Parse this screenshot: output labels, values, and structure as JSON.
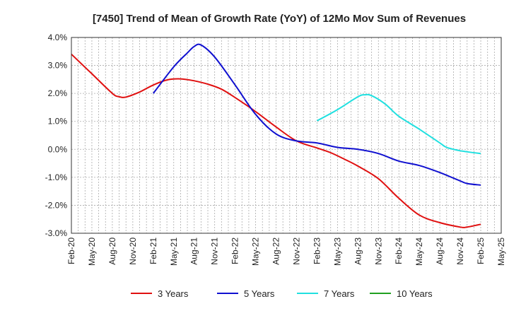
{
  "chart_data": {
    "type": "line",
    "title": "[7450]  Trend of Mean of Growth Rate (YoY) of 12Mo Mov Sum of Revenues",
    "xlabel": "",
    "ylabel": "",
    "ylim": [
      -3.0,
      4.0
    ],
    "yticks": [
      4.0,
      3.0,
      2.0,
      1.0,
      0.0,
      -1.0,
      -2.0,
      -3.0
    ],
    "ytick_labels": [
      "4.0%",
      "3.0%",
      "2.0%",
      "1.0%",
      "0.0%",
      "-1.0%",
      "-2.0%",
      "-3.0%"
    ],
    "x_start": "Feb-20",
    "x_tick_labels": [
      "Feb-20",
      "May-20",
      "Aug-20",
      "Nov-20",
      "Feb-21",
      "May-21",
      "Aug-21",
      "Nov-21",
      "Feb-22",
      "May-22",
      "Aug-22",
      "Nov-22",
      "Feb-23",
      "May-23",
      "Aug-23",
      "Nov-23",
      "Feb-24",
      "May-24",
      "Aug-24",
      "Nov-24",
      "Feb-25",
      "May-25"
    ],
    "x_tick_months": [
      0,
      3,
      6,
      9,
      12,
      15,
      18,
      21,
      24,
      27,
      30,
      33,
      36,
      39,
      42,
      45,
      48,
      51,
      54,
      57,
      60,
      63
    ],
    "grid": true,
    "legend_position": "bottom",
    "series": [
      {
        "name": "3 Years",
        "color": "#e01010",
        "x": [
          0,
          3,
          6,
          7,
          8,
          10,
          12,
          14,
          16,
          18,
          20,
          22,
          24,
          27,
          30,
          33,
          36,
          38,
          40,
          42,
          45,
          48,
          51,
          54,
          57,
          58,
          60
        ],
        "values": [
          3.4,
          2.7,
          2.0,
          1.88,
          1.87,
          2.05,
          2.3,
          2.48,
          2.52,
          2.45,
          2.33,
          2.15,
          1.85,
          1.35,
          0.8,
          0.3,
          0.05,
          -0.12,
          -0.35,
          -0.6,
          -1.05,
          -1.75,
          -2.35,
          -2.62,
          -2.78,
          -2.78,
          -2.68
        ]
      },
      {
        "name": "5 Years",
        "color": "#1010d0",
        "x": [
          12,
          15,
          17,
          18,
          19,
          21,
          24,
          27,
          30,
          33,
          36,
          39,
          42,
          45,
          48,
          51,
          54,
          57,
          58,
          60
        ],
        "values": [
          2.0,
          2.95,
          3.45,
          3.68,
          3.73,
          3.3,
          2.3,
          1.25,
          0.55,
          0.3,
          0.23,
          0.07,
          0.0,
          -0.15,
          -0.42,
          -0.58,
          -0.83,
          -1.13,
          -1.22,
          -1.28
        ]
      },
      {
        "name": "7 Years",
        "color": "#20e0e0",
        "x": [
          36,
          39,
          42,
          43,
          44,
          46,
          48,
          51,
          54,
          55,
          57,
          60
        ],
        "values": [
          1.02,
          1.42,
          1.88,
          1.95,
          1.92,
          1.62,
          1.18,
          0.72,
          0.23,
          0.07,
          -0.05,
          -0.15
        ]
      },
      {
        "name": "10 Years",
        "color": "#20a020",
        "x": [],
        "values": []
      }
    ]
  }
}
